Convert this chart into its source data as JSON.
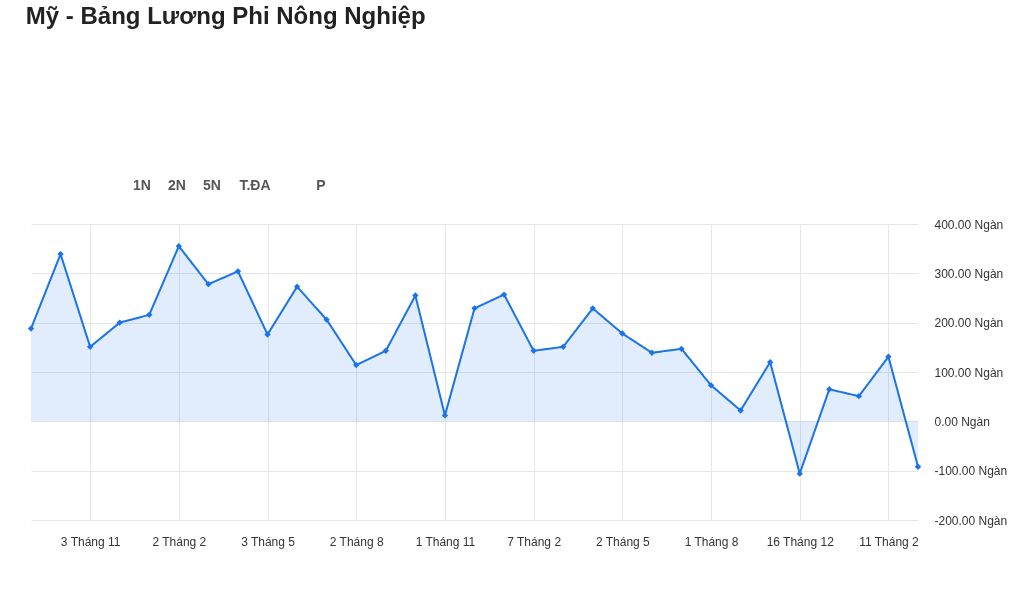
{
  "chart_data": {
    "type": "area",
    "title": "Mỹ - Bảng Lương Phi Nông Nghiệp",
    "annotations": [
      "1N",
      "2N",
      "5N",
      "T.ĐA",
      "P"
    ],
    "categories": [
      null,
      null,
      "3 Tháng 11",
      null,
      null,
      "2 Tháng 2",
      null,
      null,
      "3 Tháng 5",
      null,
      null,
      "2 Tháng 8",
      null,
      null,
      "1 Tháng 11",
      null,
      null,
      "7 Tháng 2",
      null,
      null,
      "2 Tháng 5",
      null,
      null,
      "1 Tháng 8",
      null,
      null,
      "16 Tháng 12",
      null,
      null,
      "11 Tháng 2",
      null
    ],
    "series": [
      {
        "color": "#1a73e8",
        "values": [
          188,
          339,
          151,
          200,
          216,
          355,
          278,
          304,
          176,
          273,
          206,
          114,
          143,
          255,
          12,
          229,
          257,
          143,
          151,
          229,
          178,
          139,
          147,
          73,
          22,
          120,
          -106,
          65,
          51,
          131,
          -92
        ]
      }
    ],
    "ylim": [
      -200,
      400
    ],
    "yticks": [
      {
        "value": 400,
        "label": "400.00 Ngàn"
      },
      {
        "value": 300,
        "label": "300.00 Ngàn"
      },
      {
        "value": 200,
        "label": "200.00 Ngàn"
      },
      {
        "value": 100,
        "label": "100.00 Ngàn"
      },
      {
        "value": 0,
        "label": "0.00 Ngàn"
      },
      {
        "value": -100,
        "label": "-100.00 Ngàn"
      },
      {
        "value": -200,
        "label": "-200.00 Ngàn"
      }
    ],
    "grid": true,
    "marker": "diamond",
    "line_style": "solid"
  }
}
